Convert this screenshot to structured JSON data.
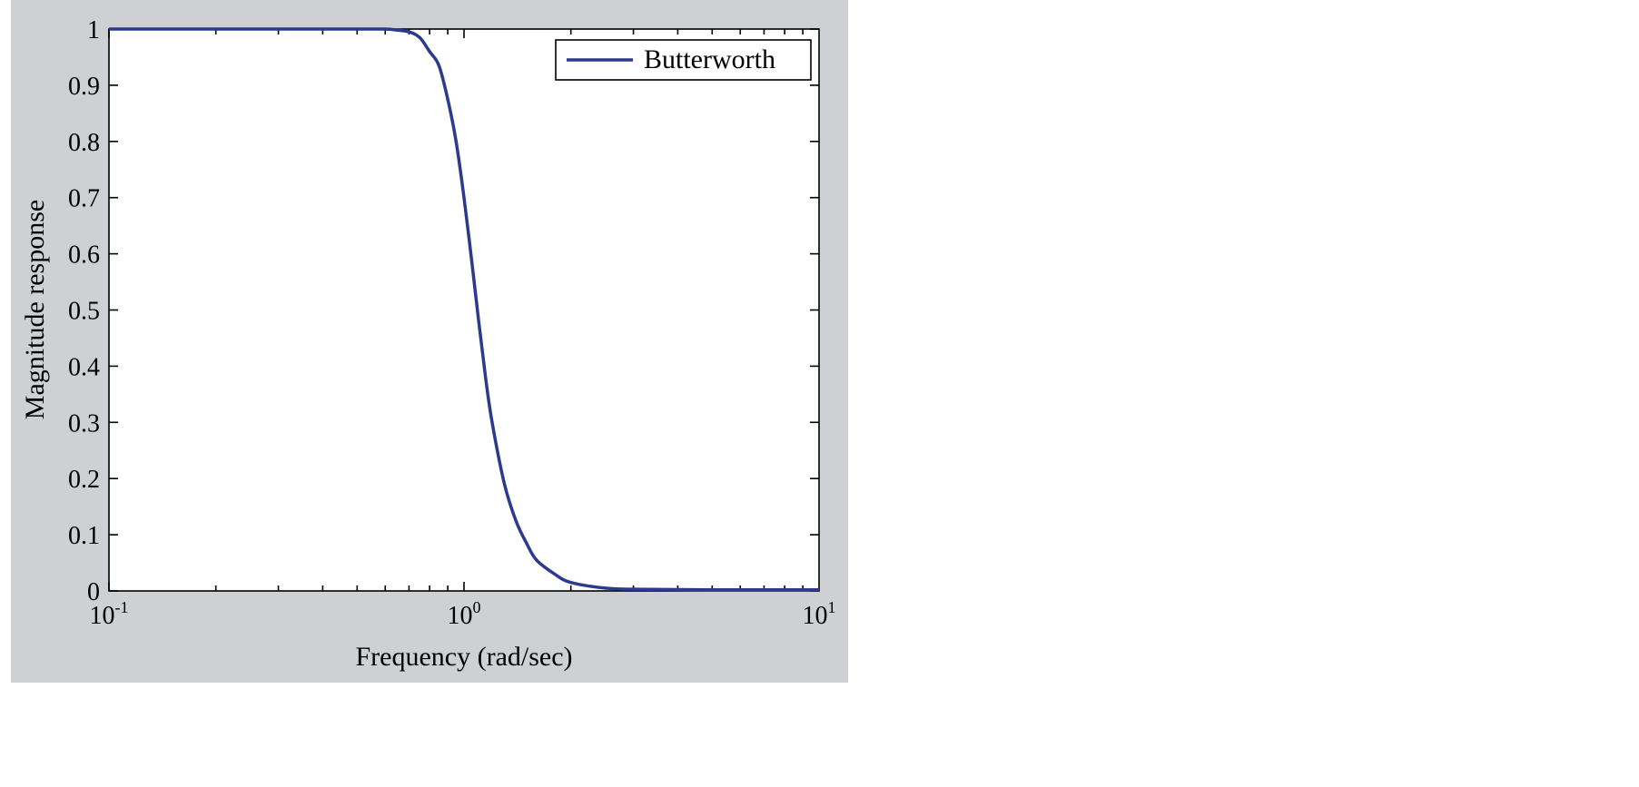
{
  "chart_data": {
    "type": "line",
    "xscale": "log",
    "xlim": [
      0.1,
      10
    ],
    "ylim": [
      0,
      1
    ],
    "xticks": [
      {
        "base": "10",
        "exp": "-1"
      },
      {
        "base": "10",
        "exp": "0"
      },
      {
        "base": "10",
        "exp": "1"
      }
    ],
    "yticks": [
      "0",
      "0.1",
      "0.2",
      "0.3",
      "0.4",
      "0.5",
      "0.6",
      "0.7",
      "0.8",
      "0.9",
      "1"
    ],
    "xlabel": "Frequency (rad/sec)",
    "ylabel": "Magnitude response",
    "legend_position": "top-right",
    "grid": false,
    "series": [
      {
        "name": "Butterworth",
        "color": "#2b3a8f",
        "x": [
          0.1,
          0.3,
          0.5,
          0.6,
          0.65,
          0.7,
          0.75,
          0.8,
          0.85,
          0.9,
          0.95,
          1.0,
          1.05,
          1.1,
          1.15,
          1.2,
          1.3,
          1.4,
          1.5,
          1.6,
          1.8,
          2.0,
          2.5,
          3.0,
          5.0,
          10.0
        ],
        "y": [
          1.0,
          1.0,
          1.0,
          1.0,
          0.998,
          0.995,
          0.985,
          0.96,
          0.935,
          0.875,
          0.8,
          0.7,
          0.59,
          0.48,
          0.38,
          0.3,
          0.19,
          0.125,
          0.085,
          0.055,
          0.03,
          0.015,
          0.005,
          0.003,
          0.002,
          0.002
        ]
      }
    ]
  }
}
